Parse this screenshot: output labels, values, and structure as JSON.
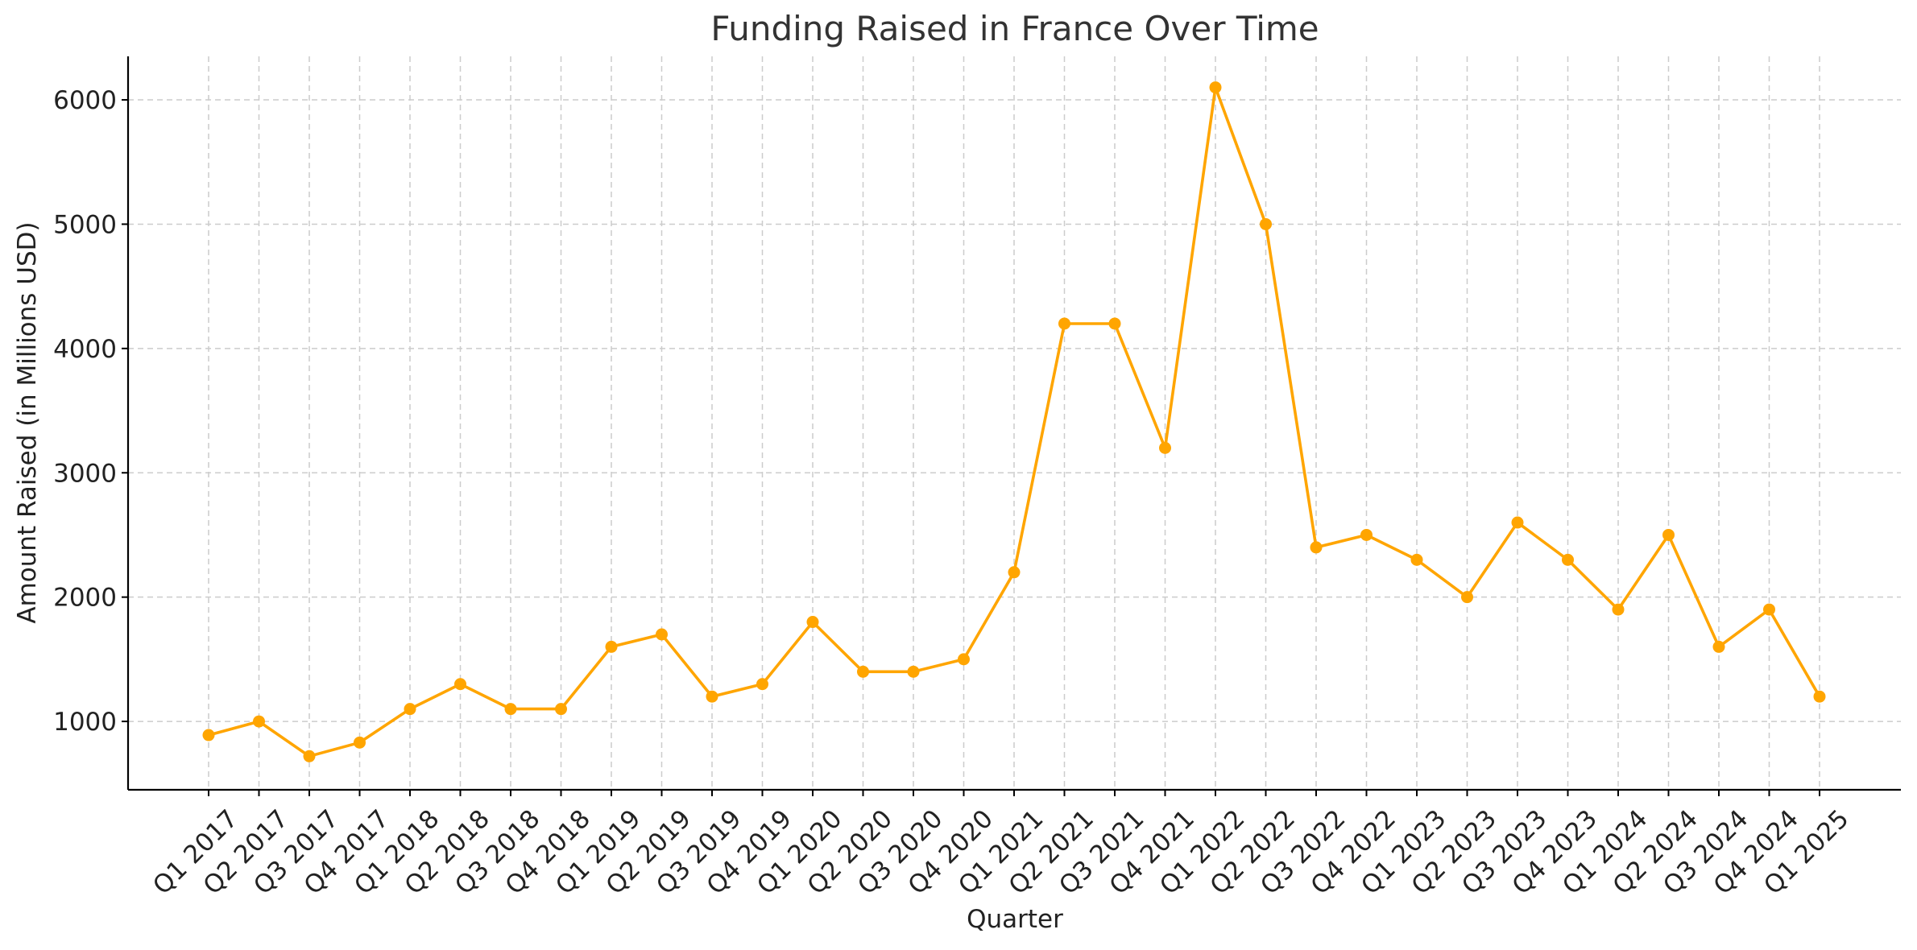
{
  "chart_data": {
    "type": "line",
    "title": "Funding Raised in France Over Time",
    "xlabel": "Quarter",
    "ylabel": "Amount Raised (in Millions USD)",
    "ylim": [
      450,
      6350
    ],
    "yticks": [
      1000,
      2000,
      3000,
      4000,
      5000,
      6000
    ],
    "grid": true,
    "categories": [
      "Q1 2017",
      "Q2 2017",
      "Q3 2017",
      "Q4 2017",
      "Q1 2018",
      "Q2 2018",
      "Q3 2018",
      "Q4 2018",
      "Q1 2019",
      "Q2 2019",
      "Q3 2019",
      "Q4 2019",
      "Q1 2020",
      "Q2 2020",
      "Q3 2020",
      "Q4 2020",
      "Q1 2021",
      "Q2 2021",
      "Q3 2021",
      "Q4 2021",
      "Q1 2022",
      "Q2 2022",
      "Q3 2022",
      "Q4 2022",
      "Q1 2023",
      "Q2 2023",
      "Q3 2023",
      "Q4 2023",
      "Q1 2024",
      "Q2 2024",
      "Q3 2024",
      "Q4 2024",
      "Q1 2025"
    ],
    "series": [
      {
        "color": "#FFA500",
        "values": [
          890,
          1000,
          720,
          830,
          1100,
          1300,
          1100,
          1100,
          1600,
          1700,
          1200,
          1300,
          1800,
          1400,
          1400,
          1500,
          2200,
          4200,
          4200,
          3200,
          6100,
          5000,
          2400,
          2500,
          2300,
          2000,
          2600,
          2300,
          1900,
          2500,
          1600,
          1900,
          1200
        ]
      }
    ]
  }
}
